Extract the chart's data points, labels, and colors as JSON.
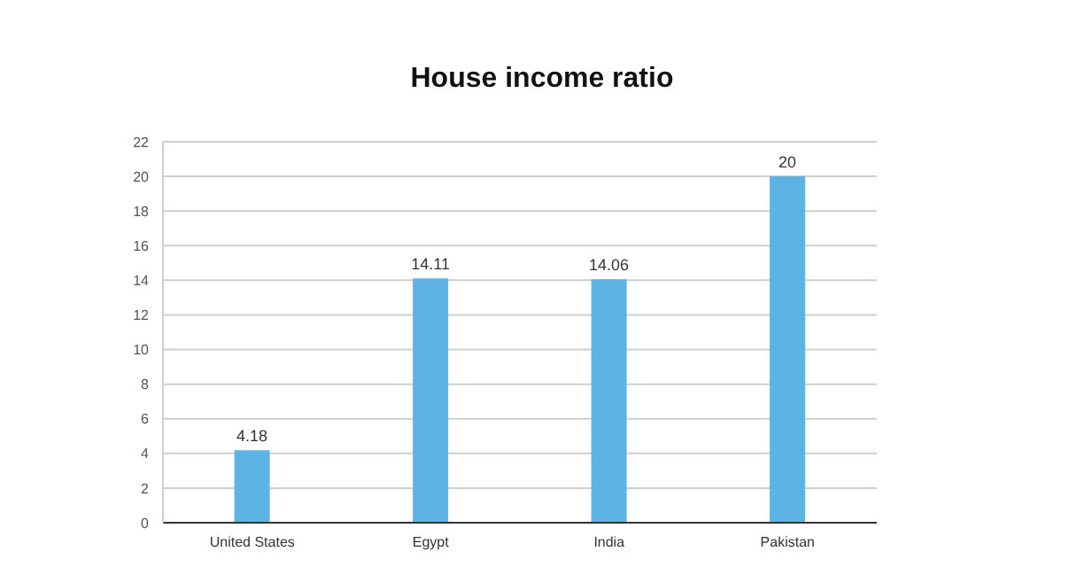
{
  "chart_data": {
    "type": "bar",
    "title": "House income ratio",
    "categories": [
      "United States",
      "Egypt",
      "India",
      "Pakistan"
    ],
    "values": [
      4.18,
      14.11,
      14.06,
      20
    ],
    "color": "#5db3e4",
    "ylim": [
      0,
      22
    ],
    "yticks": [
      0,
      2,
      4,
      6,
      8,
      10,
      12,
      14,
      16,
      18,
      20,
      22
    ],
    "grid": "y",
    "data_labels": true
  }
}
